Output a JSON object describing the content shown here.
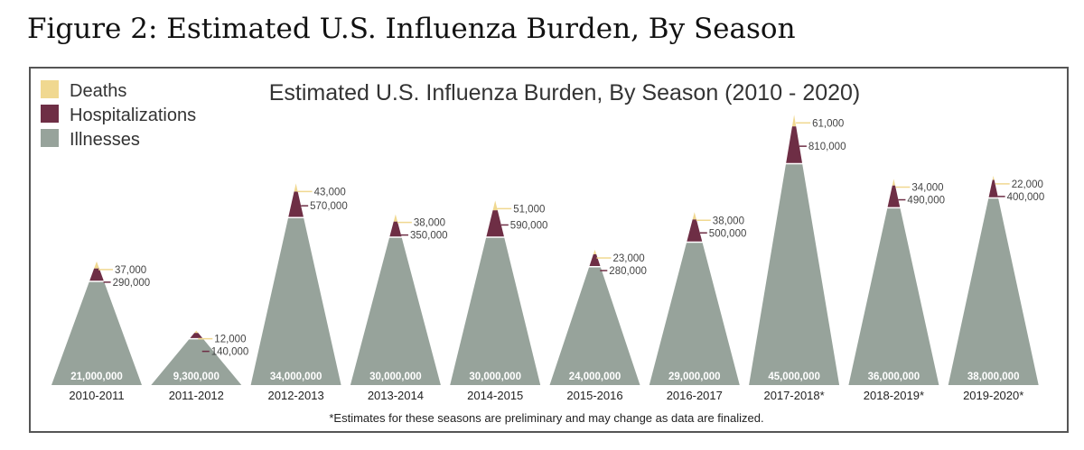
{
  "figure_title": "Figure 2: Estimated U.S. Influenza Burden, By Season",
  "chart_data": {
    "type": "area",
    "title": "Estimated U.S. Influenza Burden, By Season (2010 - 2020)",
    "legend": [
      {
        "name": "Deaths",
        "color": "#f0d890"
      },
      {
        "name": "Hospitalizations",
        "color": "#6e2e45"
      },
      {
        "name": "Illnesses",
        "color": "#97a39b"
      }
    ],
    "legend_position": "top-left",
    "categories": [
      "2010-2011",
      "2011-2012",
      "2012-2013",
      "2013-2014",
      "2014-2015",
      "2015-2016",
      "2016-2017",
      "2017-2018*",
      "2018-2019*",
      "2019-2020*"
    ],
    "series": [
      {
        "name": "Illnesses",
        "values": [
          21000000,
          9300000,
          34000000,
          30000000,
          30000000,
          24000000,
          29000000,
          45000000,
          36000000,
          38000000
        ],
        "labels": [
          "21,000,000",
          "9,300,000",
          "34,000,000",
          "30,000,000",
          "30,000,000",
          "24,000,000",
          "29,000,000",
          "45,000,000",
          "36,000,000",
          "38,000,000"
        ]
      },
      {
        "name": "Hospitalizations",
        "values": [
          290000,
          140000,
          570000,
          350000,
          590000,
          280000,
          500000,
          810000,
          490000,
          400000
        ],
        "labels": [
          "290,000",
          "140,000",
          "570,000",
          "350,000",
          "590,000",
          "280,000",
          "500,000",
          "810,000",
          "490,000",
          "400,000"
        ]
      },
      {
        "name": "Deaths",
        "values": [
          37000,
          12000,
          43000,
          38000,
          51000,
          23000,
          38000,
          61000,
          34000,
          22000
        ],
        "labels": [
          "37,000",
          "12,000",
          "43,000",
          "38,000",
          "51,000",
          "23,000",
          "38,000",
          "61,000",
          "34,000",
          "22,000"
        ]
      }
    ],
    "footnote": "*Estimates for these seasons are preliminary and may change as data are finalized."
  }
}
